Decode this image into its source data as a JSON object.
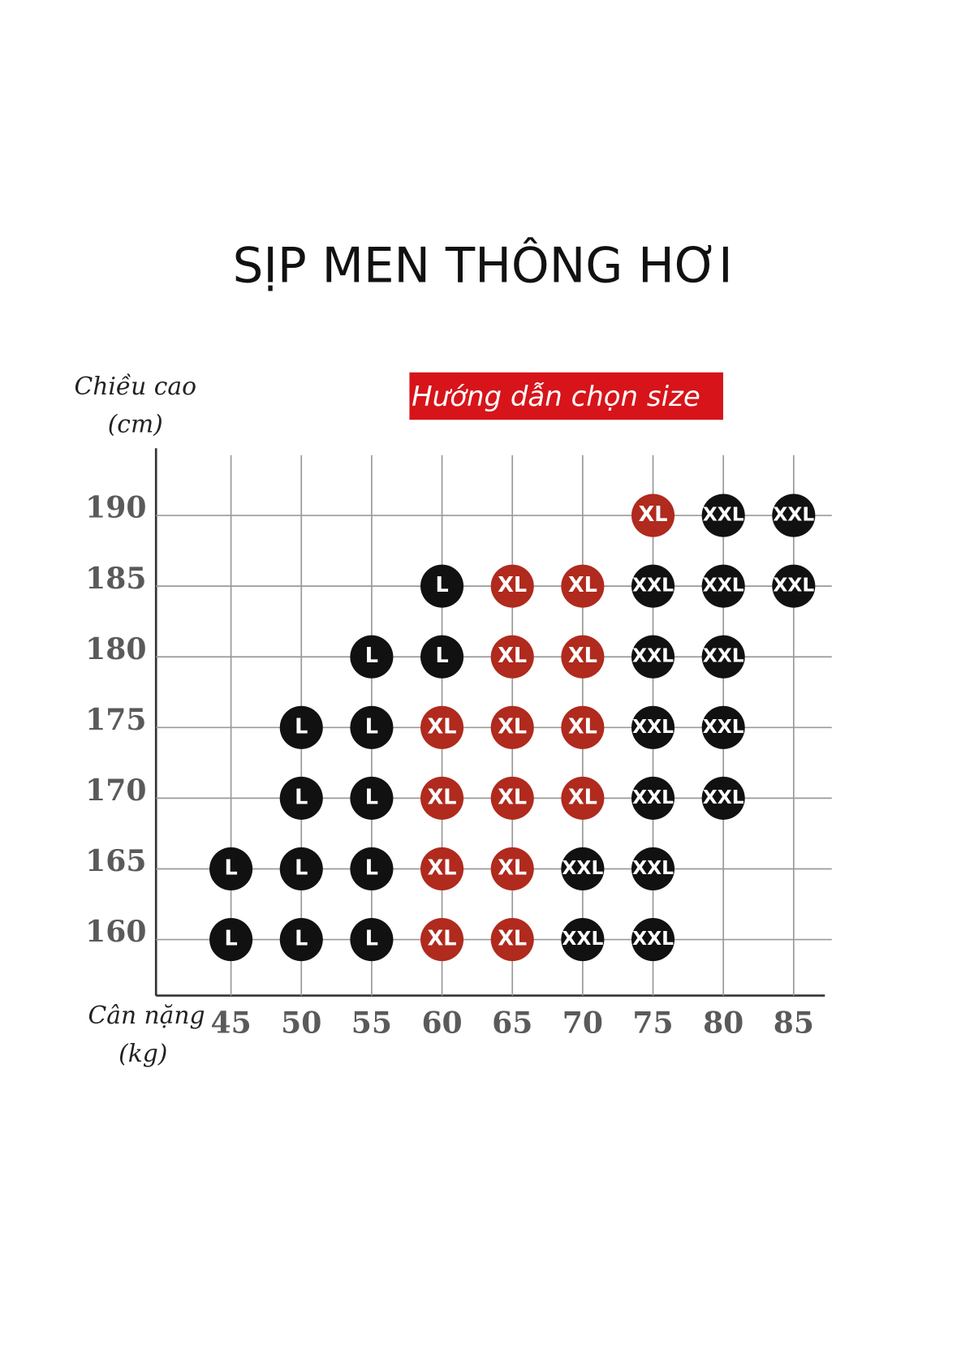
{
  "title": "SỊP MEN THÔNG HƠI",
  "badge": "Hướng dẫn chọn size",
  "y_axis_label": [
    "Chiều cao",
    "(cm)"
  ],
  "x_axis_label": [
    "Cân nặng",
    "(kg)"
  ],
  "heights": [
    190,
    185,
    180,
    175,
    170,
    165,
    160
  ],
  "weights": [
    45,
    50,
    55,
    60,
    65,
    70,
    75,
    80,
    85
  ],
  "colors": {
    "L": "#111111",
    "XL": "#b02a1e",
    "XXL": "#111111"
  },
  "cells": [
    [
      null,
      null,
      null,
      null,
      null,
      null,
      "XL",
      "XXL",
      "XXL"
    ],
    [
      null,
      null,
      null,
      "L",
      "XL",
      "XL",
      "XXL",
      "XXL",
      "XXL"
    ],
    [
      null,
      null,
      "L",
      "L",
      "XL",
      "XL",
      "XXL",
      "XXL",
      null
    ],
    [
      null,
      "L",
      "L",
      "XL",
      "XL",
      "XL",
      "XXL",
      "XXL",
      null
    ],
    [
      null,
      "L",
      "L",
      "XL",
      "XL",
      "XL",
      "XXL",
      "XXL",
      null
    ],
    [
      "L",
      "L",
      "L",
      "XL",
      "XL",
      "XXL",
      "XXL",
      null,
      null
    ],
    [
      "L",
      "L",
      "L",
      "XL",
      "XL",
      "XXL",
      "XXL",
      null,
      null
    ]
  ]
}
